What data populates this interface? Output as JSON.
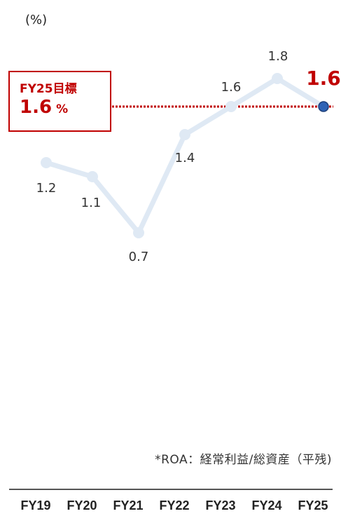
{
  "chart_data": {
    "type": "line",
    "unit_label": "(%)",
    "categories": [
      "FY19",
      "FY20",
      "FY21",
      "FY22",
      "FY23",
      "FY24",
      "FY25"
    ],
    "values": [
      1.2,
      1.1,
      0.7,
      1.4,
      1.6,
      1.8,
      1.6
    ],
    "data_labels": [
      "1.2",
      "1.1",
      "0.7",
      "1.4",
      "1.6",
      "1.8",
      "1.6"
    ],
    "target": {
      "title": "FY25目標",
      "value": "1.6",
      "unit": "%"
    },
    "footnote": "*ROA：経常利益/総資産（平残)",
    "colors": {
      "line": "#dfe9f4",
      "highlight_point": "#2f63b5",
      "target": "#c00000",
      "axis": "#555555"
    }
  }
}
